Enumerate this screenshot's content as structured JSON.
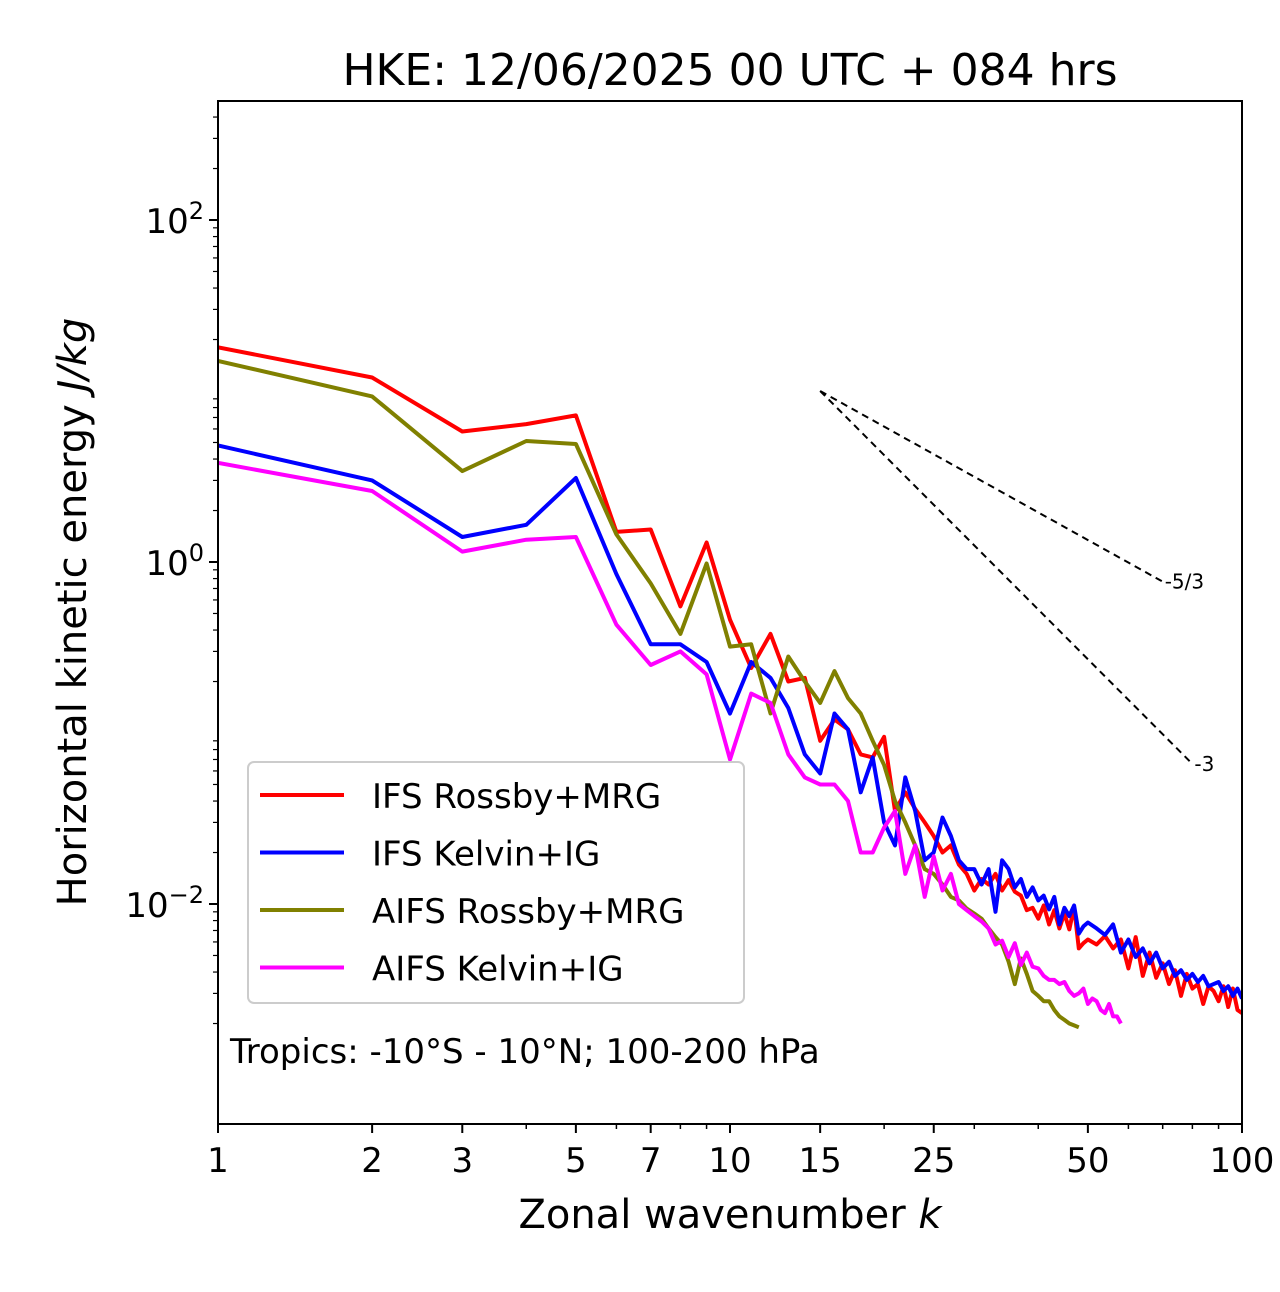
{
  "chart_data": {
    "type": "line",
    "title": "HKE: 12/06/2025 00 UTC + 084 hrs",
    "xlabel": "Zonal wavenumber ",
    "xlabel_italic": "k",
    "ylabel": "Horizontal kinetic energy ",
    "ylabel_italic": "J/kg",
    "x_scale": "log",
    "y_scale": "log",
    "xlim": [
      1,
      100
    ],
    "ylim": [
      0.0019,
      500
    ],
    "grid": false,
    "legend_position": "lower-left",
    "xticks": [
      {
        "value": 1,
        "label": "1"
      },
      {
        "value": 2,
        "label": "2"
      },
      {
        "value": 3,
        "label": "3"
      },
      {
        "value": 5,
        "label": "5"
      },
      {
        "value": 7,
        "label": "7"
      },
      {
        "value": 10,
        "label": "10"
      },
      {
        "value": 15,
        "label": "15"
      },
      {
        "value": 25,
        "label": "25"
      },
      {
        "value": 50,
        "label": "50"
      },
      {
        "value": 100,
        "label": "100"
      }
    ],
    "yticks": [
      {
        "value": 100,
        "base": "10",
        "exp": "2"
      },
      {
        "value": 1,
        "base": "10",
        "exp": "0"
      },
      {
        "value": 0.01,
        "base": "10",
        "exp": "−2"
      }
    ],
    "annotation": "Tropics: -10°S - 10°N; 100-200 hPa",
    "reference_slopes": [
      {
        "label": "-5/3",
        "slope": -1.6667,
        "x_start": 15,
        "y_start": 10.0,
        "x_end": 70
      },
      {
        "label": "-3",
        "slope": -3,
        "x_start": 15,
        "y_start": 10.0,
        "x_end": 80
      }
    ],
    "series": [
      {
        "name": "IFS Rossby+MRG",
        "color": "#ff0000",
        "x": [
          1,
          2,
          3,
          4,
          5,
          6,
          7,
          8,
          9,
          10,
          11,
          12,
          13,
          14,
          15,
          16,
          17,
          18,
          19,
          20,
          21,
          22,
          23,
          24,
          25,
          26,
          27,
          28,
          29,
          30,
          31,
          32,
          33,
          34,
          35,
          36,
          37,
          38,
          39,
          40,
          41,
          42,
          43,
          44,
          45,
          46,
          47,
          48,
          49,
          50,
          52,
          54,
          56,
          58,
          60,
          62,
          64,
          66,
          68,
          70,
          72,
          74,
          76,
          78,
          80,
          82,
          84,
          86,
          88,
          90,
          92,
          94,
          96,
          98,
          100
        ],
        "y": [
          18.0,
          12.0,
          5.8,
          6.4,
          7.2,
          1.5,
          1.55,
          0.55,
          1.3,
          0.46,
          0.24,
          0.38,
          0.2,
          0.21,
          0.09,
          0.12,
          0.105,
          0.075,
          0.072,
          0.095,
          0.035,
          0.045,
          0.036,
          0.03,
          0.025,
          0.02,
          0.022,
          0.017,
          0.015,
          0.012,
          0.014,
          0.013,
          0.015,
          0.012,
          0.0138,
          0.0118,
          0.0112,
          0.0092,
          0.0095,
          0.0082,
          0.0098,
          0.0076,
          0.0092,
          0.0072,
          0.0088,
          0.0071,
          0.0096,
          0.0055,
          0.0059,
          0.0062,
          0.0058,
          0.0065,
          0.0055,
          0.0062,
          0.0042,
          0.0064,
          0.0038,
          0.0052,
          0.0037,
          0.0045,
          0.0034,
          0.0041,
          0.0029,
          0.0039,
          0.0032,
          0.0034,
          0.0026,
          0.0033,
          0.0031,
          0.0027,
          0.0033,
          0.0025,
          0.0032,
          0.0024,
          0.0023
        ]
      },
      {
        "name": "IFS Kelvin+IG",
        "color": "#0000ff",
        "x": [
          1,
          2,
          3,
          4,
          5,
          6,
          7,
          8,
          9,
          10,
          11,
          12,
          13,
          14,
          15,
          16,
          17,
          18,
          19,
          20,
          21,
          22,
          23,
          24,
          25,
          26,
          27,
          28,
          29,
          30,
          31,
          32,
          33,
          34,
          35,
          36,
          37,
          38,
          39,
          40,
          41,
          42,
          43,
          44,
          45,
          46,
          47,
          48,
          49,
          50,
          52,
          54,
          56,
          58,
          60,
          62,
          64,
          66,
          68,
          70,
          72,
          74,
          76,
          78,
          80,
          82,
          84,
          86,
          88,
          90,
          92,
          94,
          96,
          98,
          100
        ],
        "y": [
          4.8,
          3.0,
          1.4,
          1.65,
          3.1,
          0.85,
          0.33,
          0.33,
          0.26,
          0.13,
          0.26,
          0.21,
          0.14,
          0.075,
          0.058,
          0.13,
          0.105,
          0.045,
          0.072,
          0.03,
          0.022,
          0.055,
          0.035,
          0.018,
          0.02,
          0.032,
          0.025,
          0.018,
          0.016,
          0.016,
          0.013,
          0.016,
          0.009,
          0.018,
          0.016,
          0.0125,
          0.014,
          0.011,
          0.0125,
          0.0105,
          0.0112,
          0.0093,
          0.011,
          0.0076,
          0.0095,
          0.0085,
          0.0098,
          0.0067,
          0.0074,
          0.0078,
          0.0072,
          0.0066,
          0.0076,
          0.0052,
          0.0062,
          0.0049,
          0.0055,
          0.0045,
          0.0052,
          0.0042,
          0.0046,
          0.0038,
          0.0041,
          0.0036,
          0.0039,
          0.0035,
          0.0038,
          0.0033,
          0.0034,
          0.0035,
          0.0031,
          0.0033,
          0.0029,
          0.0032,
          0.0028
        ]
      },
      {
        "name": "AIFS Rossby+MRG",
        "color": "#808000",
        "x": [
          1,
          2,
          3,
          4,
          5,
          6,
          7,
          8,
          9,
          10,
          11,
          12,
          13,
          14,
          15,
          16,
          17,
          18,
          19,
          20,
          21,
          22,
          23,
          24,
          25,
          26,
          27,
          28,
          29,
          30,
          31,
          32,
          33,
          34,
          35,
          36,
          37,
          38,
          39,
          40,
          41,
          42,
          43,
          44,
          45,
          46,
          47,
          48
        ],
        "y": [
          15.0,
          9.3,
          3.4,
          5.1,
          4.9,
          1.45,
          0.75,
          0.38,
          0.98,
          0.32,
          0.33,
          0.13,
          0.28,
          0.2,
          0.15,
          0.23,
          0.16,
          0.13,
          0.09,
          0.065,
          0.04,
          0.03,
          0.022,
          0.016,
          0.015,
          0.013,
          0.011,
          0.0105,
          0.0094,
          0.0088,
          0.0082,
          0.0072,
          0.0064,
          0.0058,
          0.0046,
          0.0034,
          0.0048,
          0.0039,
          0.0031,
          0.0029,
          0.0027,
          0.0027,
          0.0024,
          0.0022,
          0.0021,
          0.002,
          0.00195,
          0.0019
        ]
      },
      {
        "name": "AIFS Kelvin+IG",
        "color": "#ff00ff",
        "x": [
          1,
          2,
          3,
          4,
          5,
          6,
          7,
          8,
          9,
          10,
          11,
          12,
          13,
          14,
          15,
          16,
          17,
          18,
          19,
          20,
          21,
          22,
          23,
          24,
          25,
          26,
          27,
          28,
          29,
          30,
          31,
          32,
          33,
          34,
          35,
          36,
          37,
          38,
          39,
          40,
          41,
          42,
          43,
          44,
          45,
          46,
          47,
          48,
          49,
          50,
          51,
          52,
          53,
          54,
          55,
          56,
          57,
          58
        ],
        "y": [
          3.8,
          2.6,
          1.15,
          1.35,
          1.4,
          0.43,
          0.25,
          0.3,
          0.22,
          0.07,
          0.17,
          0.15,
          0.075,
          0.055,
          0.05,
          0.05,
          0.04,
          0.02,
          0.02,
          0.028,
          0.035,
          0.015,
          0.022,
          0.011,
          0.019,
          0.012,
          0.015,
          0.01,
          0.0092,
          0.0085,
          0.0079,
          0.0072,
          0.0058,
          0.0061,
          0.0049,
          0.0059,
          0.0044,
          0.0052,
          0.0043,
          0.0042,
          0.0038,
          0.0036,
          0.0036,
          0.0034,
          0.0035,
          0.0031,
          0.0029,
          0.003,
          0.0032,
          0.0026,
          0.0028,
          0.0027,
          0.0024,
          0.0023,
          0.0026,
          0.0022,
          0.0022,
          0.002
        ]
      }
    ]
  }
}
